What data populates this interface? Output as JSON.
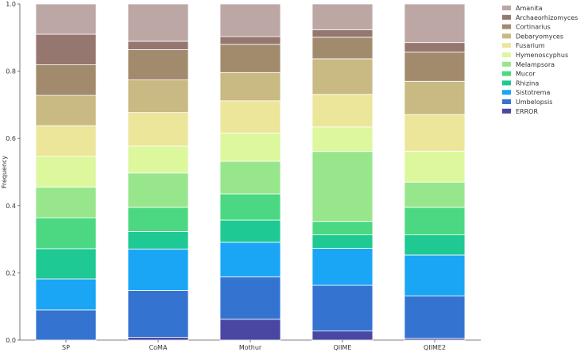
{
  "chart_data": {
    "type": "bar",
    "stacked": true,
    "title": "",
    "xlabel": "",
    "ylabel": "Frequency",
    "ylim": [
      0,
      1.0
    ],
    "yticks": [
      "0.0",
      "0.2",
      "0.4",
      "0.6",
      "0.8",
      "1.0"
    ],
    "grid": false,
    "legend_position": "top-right",
    "categories": [
      "SP",
      "CoMA",
      "Mothur",
      "QIIME",
      "QIIME2"
    ],
    "series": [
      {
        "name": "ERROR",
        "color": "#4a47a3",
        "values": [
          0.0,
          0.008,
          0.062,
          0.027,
          0.005
        ]
      },
      {
        "name": "Umbelopsis",
        "color": "#3474d0",
        "values": [
          0.09,
          0.14,
          0.126,
          0.136,
          0.126
        ]
      },
      {
        "name": "Sistotrema",
        "color": "#1aa6f5",
        "values": [
          0.092,
          0.123,
          0.103,
          0.11,
          0.122
        ]
      },
      {
        "name": "Rhizina",
        "color": "#1ec993",
        "values": [
          0.09,
          0.052,
          0.066,
          0.04,
          0.06
        ]
      },
      {
        "name": "Mucor",
        "color": "#4cd882",
        "values": [
          0.092,
          0.072,
          0.078,
          0.04,
          0.082
        ]
      },
      {
        "name": "Melampsora",
        "color": "#98e68c",
        "values": [
          0.091,
          0.102,
          0.097,
          0.208,
          0.075
        ]
      },
      {
        "name": "Hymenoscyphus",
        "color": "#ddf79d",
        "values": [
          0.092,
          0.08,
          0.084,
          0.073,
          0.092
        ]
      },
      {
        "name": "Fusarium",
        "color": "#ece69a",
        "values": [
          0.091,
          0.1,
          0.096,
          0.097,
          0.109
        ]
      },
      {
        "name": "Debaryomyces",
        "color": "#c9b982",
        "values": [
          0.09,
          0.097,
          0.084,
          0.106,
          0.099
        ]
      },
      {
        "name": "Cortinarius",
        "color": "#a28b6d",
        "values": [
          0.091,
          0.09,
          0.084,
          0.064,
          0.087
        ]
      },
      {
        "name": "Archaeorhizomyces",
        "color": "#967770",
        "values": [
          0.091,
          0.025,
          0.023,
          0.022,
          0.028
        ]
      },
      {
        "name": "Amanita",
        "color": "#bca7a5",
        "values": [
          0.09,
          0.111,
          0.097,
          0.077,
          0.115
        ]
      }
    ]
  }
}
